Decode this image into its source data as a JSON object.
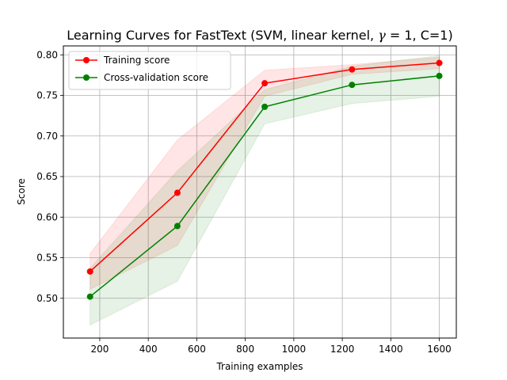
{
  "chart_data": {
    "type": "line",
    "title_parts": [
      "Learning Curves for FastText (SVM, linear kernel, ",
      "γ",
      " = 1, C=1)"
    ],
    "xlabel": "Training examples",
    "ylabel": "Score",
    "xlim": [
      50,
      1670
    ],
    "ylim": [
      0.451,
      0.811
    ],
    "xticks": [
      200,
      400,
      600,
      800,
      1000,
      1200,
      1400,
      1600
    ],
    "yticks": [
      0.5,
      0.55,
      0.6,
      0.65,
      0.7,
      0.75,
      0.8
    ],
    "xtick_labels": [
      "200",
      "400",
      "600",
      "800",
      "1000",
      "1200",
      "1400",
      "1600"
    ],
    "ytick_labels": [
      "0.50",
      "0.55",
      "0.60",
      "0.65",
      "0.70",
      "0.75",
      "0.80"
    ],
    "grid": true,
    "legend_position": "upper-left",
    "x": [
      160,
      520,
      880,
      1240,
      1600
    ],
    "series": [
      {
        "name": "Training score",
        "color": "#ff0000",
        "band_color": "#ff0000",
        "values": [
          0.533,
          0.63,
          0.765,
          0.782,
          0.79
        ],
        "band_upper": [
          0.555,
          0.695,
          0.781,
          0.788,
          0.797
        ],
        "band_lower": [
          0.511,
          0.565,
          0.749,
          0.776,
          0.783
        ]
      },
      {
        "name": "Cross-validation score",
        "color": "#008000",
        "band_color": "#008000",
        "values": [
          0.502,
          0.589,
          0.736,
          0.763,
          0.774
        ],
        "band_upper": [
          0.537,
          0.657,
          0.757,
          0.786,
          0.799
        ],
        "band_lower": [
          0.467,
          0.521,
          0.715,
          0.74,
          0.749
        ]
      }
    ]
  }
}
